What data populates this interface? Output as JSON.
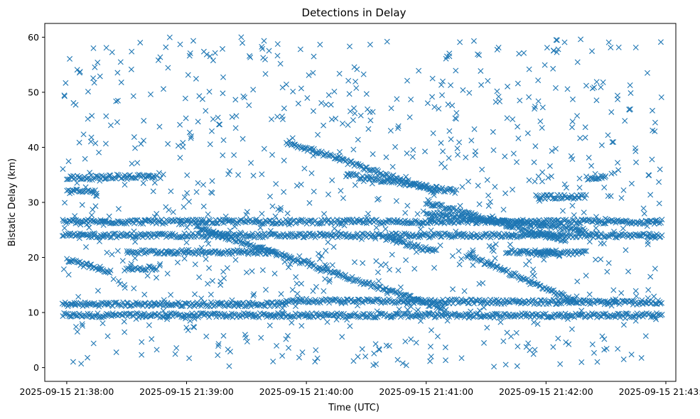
{
  "chart_data": {
    "type": "scatter",
    "title": "Detections in Delay",
    "xlabel": "Time (UTC)",
    "ylabel": "Bistatic Delay (km)",
    "x_axis": {
      "kind": "datetime",
      "range": [
        "2025-09-15 21:37:49",
        "2025-09-15 21:43:05"
      ],
      "ticks": [
        "2025-09-15 21:38:00",
        "2025-09-15 21:39:00",
        "2025-09-15 21:40:00",
        "2025-09-15 21:41:00",
        "2025-09-15 21:42:00",
        "2025-09-15 21:43:00"
      ]
    },
    "y_axis": {
      "range": [
        -2.5,
        62.5
      ],
      "ticks": [
        0,
        10,
        20,
        30,
        40,
        50,
        60
      ]
    },
    "marker": "x",
    "color": "#1f77b4",
    "grid": false,
    "legend": "none",
    "series": [
      {
        "description_of_data": "Radar detections: delay vs time",
        "tracks": [
          {
            "t0": "2025-09-15 21:37:58",
            "t1": "2025-09-15 21:42:58",
            "y0": 9.5,
            "y1": 9.5
          },
          {
            "t0": "2025-09-15 21:37:58",
            "t1": "2025-09-15 21:39:50",
            "y0": 11.5,
            "y1": 11.5
          },
          {
            "t0": "2025-09-15 21:39:50",
            "t1": "2025-09-15 21:42:58",
            "y0": 12.2,
            "y1": 11.8
          },
          {
            "t0": "2025-09-15 21:37:58",
            "t1": "2025-09-15 21:42:58",
            "y0": 26.5,
            "y1": 26.5
          },
          {
            "t0": "2025-09-15 21:37:58",
            "t1": "2025-09-15 21:42:58",
            "y0": 24.0,
            "y1": 24.0
          },
          {
            "t0": "2025-09-15 21:38:00",
            "t1": "2025-09-15 21:38:20",
            "y0": 34.5,
            "y1": 34.5
          },
          {
            "t0": "2025-09-15 21:38:20",
            "t1": "2025-09-15 21:38:45",
            "y0": 34.7,
            "y1": 34.7
          },
          {
            "t0": "2025-09-15 21:38:00",
            "t1": "2025-09-15 21:38:15",
            "y0": 32.0,
            "y1": 32.0
          },
          {
            "t0": "2025-09-15 21:38:00",
            "t1": "2025-09-15 21:38:22",
            "y0": 19.5,
            "y1": 17.5
          },
          {
            "t0": "2025-09-15 21:38:30",
            "t1": "2025-09-15 21:38:45",
            "y0": 18.0,
            "y1": 18.0
          },
          {
            "t0": "2025-09-15 21:38:30",
            "t1": "2025-09-15 21:39:45",
            "y0": 21.0,
            "y1": 21.0
          },
          {
            "t0": "2025-09-15 21:39:05",
            "t1": "2025-09-15 21:41:10",
            "y0": 25.5,
            "y1": 10.5
          },
          {
            "t0": "2025-09-15 21:39:50",
            "t1": "2025-09-15 21:41:05",
            "y0": 41.0,
            "y1": 32.0
          },
          {
            "t0": "2025-09-15 21:40:20",
            "t1": "2025-09-15 21:41:15",
            "y0": 35.0,
            "y1": 32.0
          },
          {
            "t0": "2025-09-15 21:41:00",
            "t1": "2025-09-15 21:42:10",
            "y0": 30.0,
            "y1": 23.0
          },
          {
            "t0": "2025-09-15 21:41:00",
            "t1": "2025-09-15 21:42:20",
            "y0": 28.0,
            "y1": 25.0
          },
          {
            "t0": "2025-09-15 21:41:20",
            "t1": "2025-09-15 21:42:15",
            "y0": 20.5,
            "y1": 12.0
          },
          {
            "t0": "2025-09-15 21:41:40",
            "t1": "2025-09-15 21:42:05",
            "y0": 21.0,
            "y1": 21.0
          },
          {
            "t0": "2025-09-15 21:41:55",
            "t1": "2025-09-15 21:42:20",
            "y0": 31.0,
            "y1": 31.0
          },
          {
            "t0": "2025-09-15 21:42:20",
            "t1": "2025-09-15 21:42:30",
            "y0": 34.5,
            "y1": 34.5
          },
          {
            "t0": "2025-09-15 21:41:55",
            "t1": "2025-09-15 21:42:20",
            "y0": 20.8,
            "y1": 20.8
          },
          {
            "t0": "2025-09-15 21:40:40",
            "t1": "2025-09-15 21:41:05",
            "y0": 23.5,
            "y1": 21.0
          }
        ],
        "noise": {
          "t0": "2025-09-15 21:37:58",
          "t1": "2025-09-15 21:42:58",
          "y0": 0,
          "y1": 60
        }
      }
    ]
  }
}
